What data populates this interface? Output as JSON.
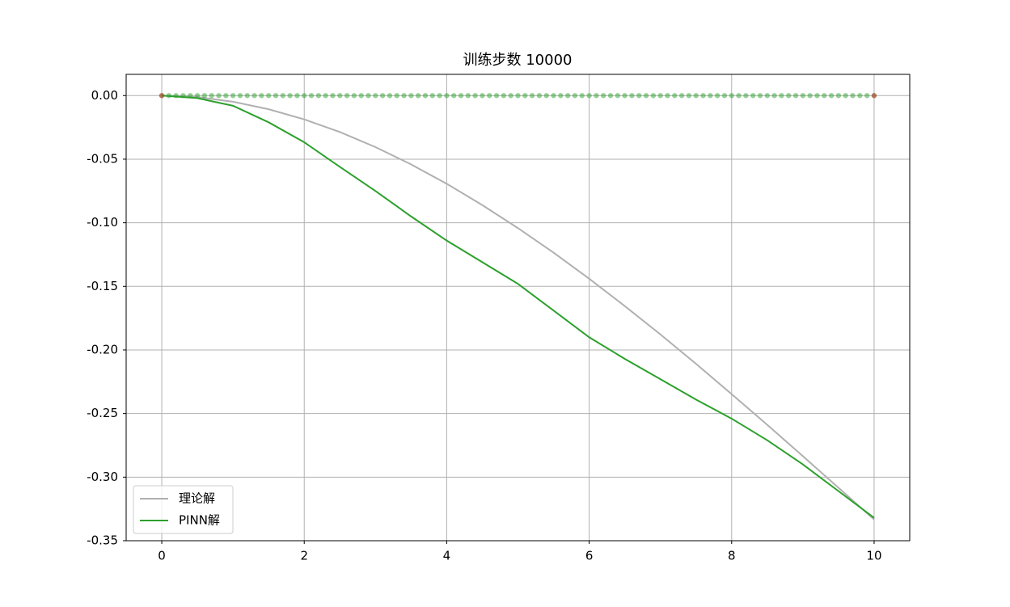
{
  "chart_data": {
    "type": "line",
    "title": "训练步数 10000",
    "xlim": [
      -0.5,
      10.5
    ],
    "ylim": [
      -0.35,
      0.0167
    ],
    "xticks": [
      0,
      2,
      4,
      6,
      8,
      10
    ],
    "yticks": [
      {
        "value": 0,
        "label": "0.00"
      },
      {
        "value": -0.05,
        "label": "-0.05"
      },
      {
        "value": -0.1,
        "label": "-0.10"
      },
      {
        "value": -0.15,
        "label": "-0.15"
      },
      {
        "value": -0.2,
        "label": "-0.20"
      },
      {
        "value": -0.25,
        "label": "-0.25"
      },
      {
        "value": -0.3,
        "label": "-0.30"
      },
      {
        "value": -0.35,
        "label": "-0.35"
      }
    ],
    "grid": true,
    "legend": "lower left",
    "series": [
      {
        "name": "理论解",
        "type": "line",
        "color": "#b0b0b0",
        "x": [
          0,
          0.5,
          1,
          1.5,
          2,
          2.5,
          3,
          3.5,
          4,
          4.5,
          5,
          5.5,
          6,
          6.5,
          7,
          7.5,
          8,
          8.5,
          9,
          9.5,
          10
        ],
        "values": [
          0,
          -0.0012,
          -0.0048,
          -0.0107,
          -0.0187,
          -0.0286,
          -0.0405,
          -0.0541,
          -0.0693,
          -0.0861,
          -0.1042,
          -0.1235,
          -0.144,
          -0.1655,
          -0.1878,
          -0.2109,
          -0.2347,
          -0.2589,
          -0.2835,
          -0.3084,
          -0.3333
        ]
      },
      {
        "name": "PINN解",
        "type": "line",
        "color": "#2ca02c",
        "x": [
          0,
          0.5,
          1,
          1.5,
          2,
          2.5,
          3,
          3.5,
          4,
          4.5,
          5,
          5.5,
          6,
          6.5,
          7,
          7.5,
          8,
          8.5,
          9,
          9.5,
          10
        ],
        "values": [
          0,
          -0.002,
          -0.008,
          -0.021,
          -0.0367,
          -0.056,
          -0.075,
          -0.095,
          -0.114,
          -0.131,
          -0.148,
          -0.169,
          -0.19,
          -0.207,
          -0.223,
          -0.239,
          -0.254,
          -0.271,
          -0.29,
          -0.311,
          -0.332
        ]
      },
      {
        "type": "scatter",
        "color": "#2ca02c",
        "alpha": 0.5,
        "x": [
          0,
          0.1,
          0.2,
          0.3,
          0.4,
          0.5,
          0.6,
          0.7,
          0.8,
          0.9,
          1,
          1.1,
          1.2,
          1.3,
          1.4,
          1.5,
          1.6,
          1.7,
          1.8,
          1.9,
          2,
          2.1,
          2.2,
          2.3,
          2.4,
          2.5,
          2.6,
          2.7,
          2.8,
          2.9,
          3,
          3.1,
          3.2,
          3.3,
          3.4,
          3.5,
          3.6,
          3.7,
          3.8,
          3.9,
          4,
          4.1,
          4.2,
          4.3,
          4.4,
          4.5,
          4.6,
          4.7,
          4.8,
          4.9,
          5,
          5.1,
          5.2,
          5.3,
          5.4,
          5.5,
          5.6,
          5.7,
          5.8,
          5.9,
          6,
          6.1,
          6.2,
          6.3,
          6.4,
          6.5,
          6.6,
          6.7,
          6.8,
          6.9,
          7,
          7.1,
          7.2,
          7.3,
          7.4,
          7.5,
          7.6,
          7.7,
          7.8,
          7.9,
          8,
          8.1,
          8.2,
          8.3,
          8.4,
          8.5,
          8.6,
          8.7,
          8.8,
          8.9,
          9,
          9.1,
          9.2,
          9.3,
          9.4,
          9.5,
          9.6,
          9.7,
          9.8,
          9.9,
          10
        ],
        "values": [
          0,
          0,
          0,
          0,
          0,
          0,
          0,
          0,
          0,
          0,
          0,
          0,
          0,
          0,
          0,
          0,
          0,
          0,
          0,
          0,
          0,
          0,
          0,
          0,
          0,
          0,
          0,
          0,
          0,
          0,
          0,
          0,
          0,
          0,
          0,
          0,
          0,
          0,
          0,
          0,
          0,
          0,
          0,
          0,
          0,
          0,
          0,
          0,
          0,
          0,
          0,
          0,
          0,
          0,
          0,
          0,
          0,
          0,
          0,
          0,
          0,
          0,
          0,
          0,
          0,
          0,
          0,
          0,
          0,
          0,
          0,
          0,
          0,
          0,
          0,
          0,
          0,
          0,
          0,
          0,
          0,
          0,
          0,
          0,
          0,
          0,
          0,
          0,
          0,
          0,
          0,
          0,
          0,
          0,
          0,
          0,
          0,
          0,
          0,
          0,
          0
        ]
      },
      {
        "type": "scatter",
        "color": "#d62728",
        "alpha": 0.5,
        "x": [
          0,
          10
        ],
        "values": [
          0,
          0
        ]
      }
    ]
  }
}
